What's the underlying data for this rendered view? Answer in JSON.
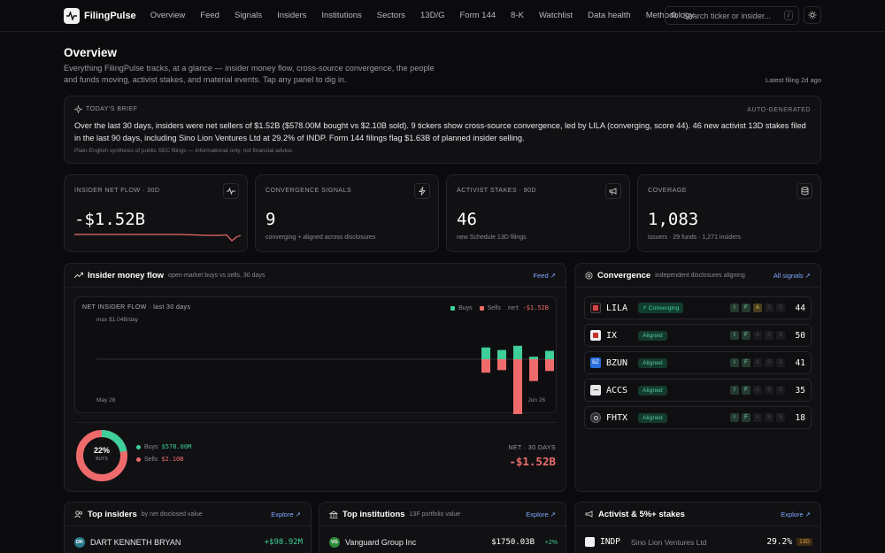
{
  "nav": {
    "brand": "FilingPulse",
    "items": [
      "Overview",
      "Feed",
      "Signals",
      "Insiders",
      "Institutions",
      "Sectors",
      "13D/G",
      "Form 144",
      "8-K",
      "Watchlist",
      "Data health",
      "Methodology"
    ],
    "search_placeholder": "Search ticker or insider...",
    "search_kbd": "/"
  },
  "header": {
    "title": "Overview",
    "subtitle": "Everything FilingPulse tracks, at a glance — insider money flow, cross-source convergence, the people and funds moving, activist stakes, and material events. Tap any panel to dig in.",
    "latest": "Latest filing 2d ago"
  },
  "brief": {
    "label": "TODAY'S BRIEF",
    "auto": "AUTO-GENERATED",
    "text": "Over the last 30 days, insiders were net sellers of $1.52B ($578.00M bought vs $2.10B sold). 9 tickers show cross-source convergence, led by LILA (converging, score 44). 46 new activist 13D stakes filed in the last 90 days, including Sino Lion Ventures Ltd at 29.2% of INDP. Form 144 filings flag $1.63B of planned insider selling.",
    "note": "Plain-English synthesis of public SEC filings — informational only, not financial advice."
  },
  "stats": [
    {
      "label": "INSIDER NET FLOW · 30D",
      "value": "-$1.52B",
      "caption": "",
      "icon": "pulse-icon"
    },
    {
      "label": "CONVERGENCE SIGNALS",
      "value": "9",
      "caption": "converging + aligned across disclosures",
      "icon": "bolt-icon"
    },
    {
      "label": "ACTIVIST STAKES · 90D",
      "value": "46",
      "caption": "new Schedule 13D filings",
      "icon": "megaphone-icon"
    },
    {
      "label": "COVERAGE",
      "value": "1,083",
      "caption": "issuers · 29 funds · 1,271 insiders",
      "icon": "database-icon"
    }
  ],
  "flow": {
    "title": "Insider money flow",
    "subtitle": "open-market buys vs sells, 30 days",
    "link": "Feed ↗",
    "chart_title": "NET INSIDER FLOW · last 30 days",
    "legend_buys": "Buys",
    "legend_sells": "Sells",
    "legend_net_label": "net",
    "legend_net": "-$1.52B",
    "ymax_label": "max $1.04B/day",
    "x_start": "May 28",
    "x_end": "Jun 26",
    "donut_pct": "22%",
    "donut_sub": "BUYS",
    "buys_label": "Buys",
    "buys_value": "$578.00M",
    "sells_label": "Sells",
    "sells_value": "$2.10B",
    "net_label": "NET · 30 DAYS",
    "net_value": "-$1.52B"
  },
  "chart_data": {
    "type": "bar",
    "title": "NET INSIDER FLOW · last 30 days",
    "x_start": "May 28",
    "x_end": "Jun 26",
    "ymax": 1.04,
    "series": [
      {
        "name": "Buys",
        "values": [
          0.14,
          0.11,
          0.16,
          0.03,
          0.1
        ]
      },
      {
        "name": "Sells",
        "values": [
          0.16,
          0.13,
          0.72,
          0.26,
          0.14
        ]
      }
    ],
    "buy_share": 0.22,
    "colors": {
      "buys": "#3ecf9a",
      "sells": "#ef6b6b"
    }
  },
  "convergence": {
    "title": "Convergence",
    "subtitle": "independent disclosures aligning",
    "link": "All signals ↗",
    "rows": [
      {
        "ticker": "LILA",
        "status": "Converging",
        "flags": [
          "I",
          "F",
          "A",
          "S",
          "S"
        ],
        "score": "44",
        "logo": "#d64545"
      },
      {
        "ticker": "IX",
        "status": "Aligned",
        "flags": [
          "I",
          "F",
          "A",
          "S",
          "S"
        ],
        "score": "50",
        "logo": "#c8322d"
      },
      {
        "ticker": "BZUN",
        "status": "Aligned",
        "flags": [
          "I",
          "F",
          "A",
          "S",
          "S"
        ],
        "score": "41",
        "logo": "#2a6fdb"
      },
      {
        "ticker": "ACCS",
        "status": "Aligned",
        "flags": [
          "I",
          "F",
          "A",
          "S",
          "S"
        ],
        "score": "35",
        "logo": "#e8e8ea"
      },
      {
        "ticker": "FHTX",
        "status": "Aligned",
        "flags": [
          "I",
          "F",
          "A",
          "S",
          "S"
        ],
        "score": "18",
        "logo": "#3a3a40"
      }
    ]
  },
  "bottom": {
    "insiders": {
      "title": "Top insiders",
      "subtitle": "by net disclosed value",
      "link": "Explore ↗",
      "initials": "DK",
      "name": "DART KENNETH BRYAN",
      "value": "+$98.92M"
    },
    "institutions": {
      "title": "Top institutions",
      "subtitle": "13F portfolio value",
      "link": "Explore ↗",
      "initials": "VG",
      "name": "Vanguard Group Inc",
      "value": "$1750.03B",
      "change": "+2%"
    },
    "activist": {
      "title": "Activist & 5%+ stakes",
      "link": "Explore ↗",
      "ticker": "INDP",
      "name": "Sino Lion Ventures Ltd",
      "pct": "29.2%",
      "badge": "13D"
    }
  }
}
